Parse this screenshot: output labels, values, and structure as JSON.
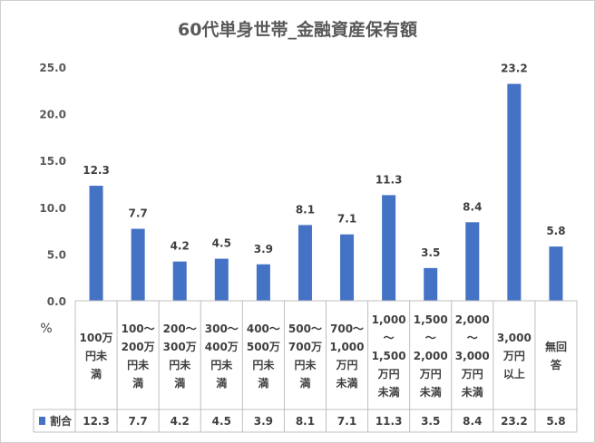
{
  "chart_data": {
    "type": "bar",
    "title": "60代単身世帯_金融資産保有額",
    "ylabel": "%",
    "ylim": [
      0,
      25
    ],
    "ytick_step": 5,
    "yticks": [
      "0.0",
      "5.0",
      "10.0",
      "15.0",
      "20.0",
      "25.0"
    ],
    "grid": false,
    "legend": "bottom-left (data table)",
    "categories": [
      [
        "100万",
        "円未",
        "満"
      ],
      [
        "100～",
        "200万",
        "円未",
        "満"
      ],
      [
        "200～",
        "300万",
        "円未",
        "満"
      ],
      [
        "300～",
        "400万",
        "円未",
        "満"
      ],
      [
        "400～",
        "500万",
        "円未",
        "満"
      ],
      [
        "500～",
        "700万",
        "円未",
        "満"
      ],
      [
        "700～",
        "1,000",
        "万円",
        "未満"
      ],
      [
        "1,000",
        "～",
        "1,500",
        "万円",
        "未満"
      ],
      [
        "1,500",
        "～",
        "2,000",
        "万円",
        "未満"
      ],
      [
        "2,000",
        "～",
        "3,000",
        "万円",
        "未満"
      ],
      [
        "3,000",
        "万円",
        "以上"
      ],
      [
        "無回",
        "答"
      ]
    ],
    "series": [
      {
        "name": "割合",
        "color": "#4472C4",
        "values": [
          12.3,
          7.7,
          4.2,
          4.5,
          3.9,
          8.1,
          7.1,
          11.3,
          3.5,
          8.4,
          23.2,
          5.8
        ],
        "labels": [
          "12.3",
          "7.7",
          "4.2",
          "4.5",
          "3.9",
          "8.1",
          "7.1",
          "11.3",
          "3.5",
          "8.4",
          "23.2",
          "5.8"
        ]
      }
    ]
  }
}
